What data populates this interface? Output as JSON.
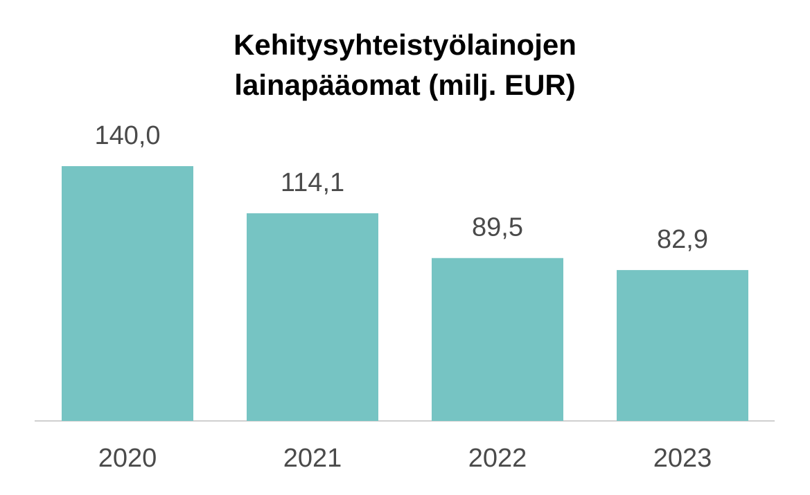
{
  "chart_data": {
    "type": "bar",
    "title": "Kehitysyhteistyölainojen lainapääomat (milj. EUR)",
    "title_lines": [
      "Kehitysyhteistyölainojen",
      "lainapääomat (milj. EUR)"
    ],
    "categories": [
      "2020",
      "2021",
      "2022",
      "2023"
    ],
    "values": [
      140.0,
      114.1,
      89.5,
      82.9
    ],
    "data_labels": [
      "140,0",
      "114,1",
      "89,5",
      "82,9"
    ],
    "xlabel": "",
    "ylabel": "",
    "ylim": [
      0,
      140
    ],
    "grid": false,
    "legend": "none",
    "bar_color": "#76c4c3",
    "axis_color": "#d0d0d0",
    "label_color": "#4a4a4a"
  }
}
